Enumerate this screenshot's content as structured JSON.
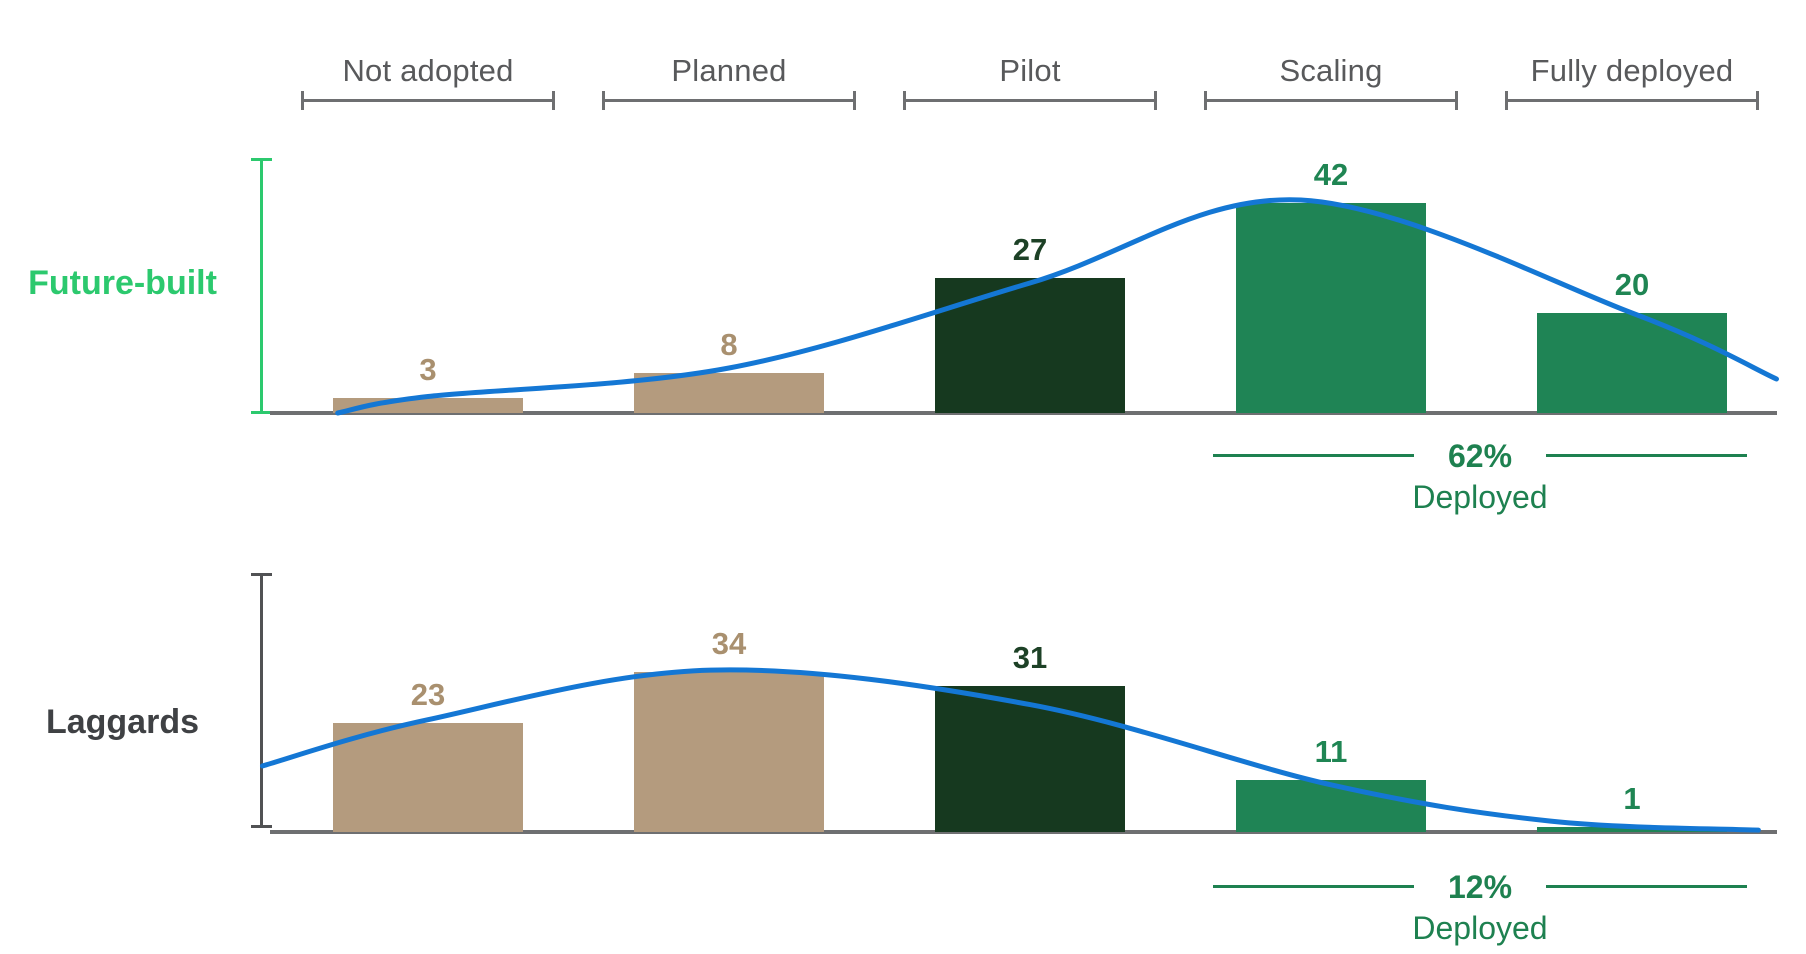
{
  "page": {
    "background": "#ffffff"
  },
  "stage_axis": {
    "categories": [
      {
        "label": "Not adopted",
        "slug": "not-adopted",
        "palette": "tan"
      },
      {
        "label": "Planned",
        "slug": "planned",
        "palette": "tan"
      },
      {
        "label": "Pilot",
        "slug": "pilot",
        "palette": "dark_green"
      },
      {
        "label": "Scaling",
        "slug": "scaling",
        "palette": "green"
      },
      {
        "label": "Fully deployed",
        "slug": "fully-deployed",
        "palette": "green"
      }
    ]
  },
  "colors": {
    "tan": {
      "bar": "#b49b7e",
      "label": "#a9906f"
    },
    "dark_green": {
      "bar": "#16391f",
      "label": "#1d4126"
    },
    "green": {
      "bar": "#1f8455",
      "label": "#1f8553"
    },
    "trend_line": "#1477d4",
    "future_built_accent": "#2cc96e",
    "laggards_accent": "#3f4144",
    "stage_label": "#58595b",
    "axis_line": "#6e6f71",
    "deployed_green": "#1e8150"
  },
  "chart_data": [
    {
      "type": "bar",
      "row_label": "Future-built",
      "categories": [
        "Not adopted",
        "Planned",
        "Pilot",
        "Scaling",
        "Fully deployed"
      ],
      "values": [
        3,
        8,
        27,
        42,
        20
      ],
      "ylim": [
        0,
        50
      ],
      "grid": false,
      "legend": false,
      "annotation": {
        "value": "62%",
        "label": "Deployed",
        "covers": [
          "Scaling",
          "Fully deployed"
        ]
      },
      "trend_curve": {
        "type": "smooth-line",
        "points": [
          {
            "x": -0.3,
            "value": 0.0
          },
          {
            "x": 0.0,
            "value": 3.3
          },
          {
            "x": 1.0,
            "value": 9.0
          },
          {
            "x": 2.0,
            "value": 26.0
          },
          {
            "x": 2.9,
            "value": 42.6
          },
          {
            "x": 4.0,
            "value": 20.0
          },
          {
            "x": 4.48,
            "value": 6.8
          }
        ]
      }
    },
    {
      "type": "bar",
      "row_label": "Laggards",
      "categories": [
        "Not adopted",
        "Planned",
        "Pilot",
        "Scaling",
        "Fully deployed"
      ],
      "values": [
        23,
        34,
        31,
        11,
        1
      ],
      "ylim": [
        0,
        50
      ],
      "grid": false,
      "legend": false,
      "annotation": {
        "value": "12%",
        "label": "Deployed",
        "covers": [
          "Scaling",
          "Fully deployed"
        ]
      },
      "trend_curve": {
        "type": "smooth-line",
        "points": [
          {
            "x": -0.55,
            "value": 14.0
          },
          {
            "x": 0.0,
            "value": 23.8
          },
          {
            "x": 0.94,
            "value": 34.3
          },
          {
            "x": 2.0,
            "value": 27.0
          },
          {
            "x": 3.0,
            "value": 10.0
          },
          {
            "x": 3.73,
            "value": 2.3
          },
          {
            "x": 4.42,
            "value": 0.4
          }
        ]
      }
    }
  ]
}
